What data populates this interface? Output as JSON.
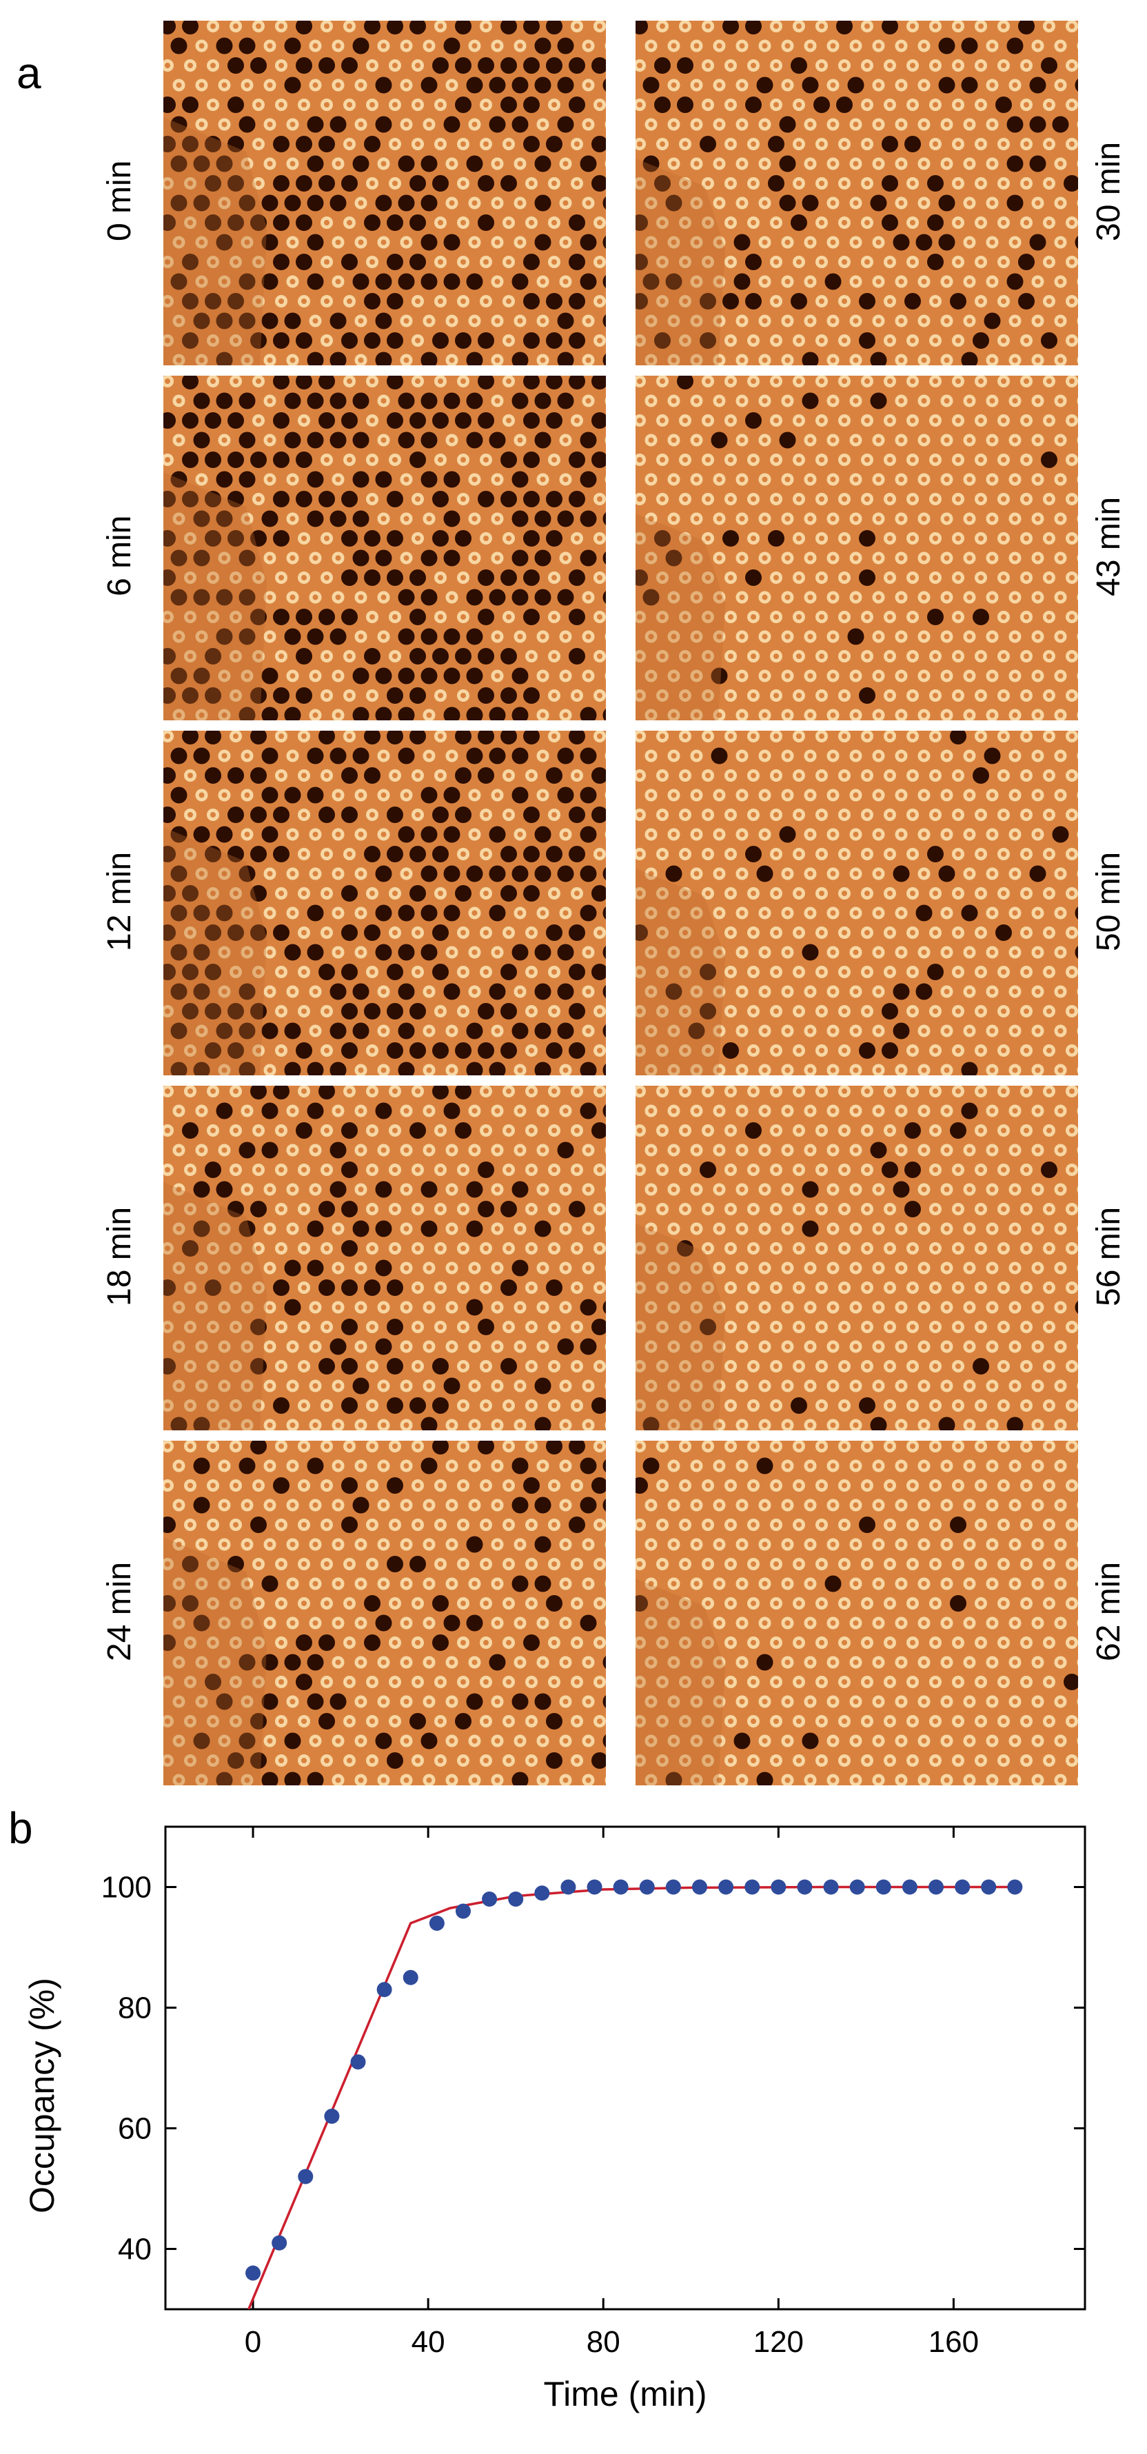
{
  "panel_labels": {
    "a": "a",
    "b": "b"
  },
  "stm_frames": [
    {
      "time": "0 min",
      "side": "left",
      "voids": "high"
    },
    {
      "time": "6 min",
      "side": "left",
      "voids": "high"
    },
    {
      "time": "12 min",
      "side": "left",
      "voids": "high"
    },
    {
      "time": "18 min",
      "side": "left",
      "voids": "medium"
    },
    {
      "time": "24 min",
      "side": "left",
      "voids": "medium"
    },
    {
      "time": "30 min",
      "side": "right",
      "voids": "medium"
    },
    {
      "time": "43 min",
      "side": "right",
      "voids": "low"
    },
    {
      "time": "50 min",
      "side": "right",
      "voids": "low"
    },
    {
      "time": "56 min",
      "side": "right",
      "voids": "low"
    },
    {
      "time": "62 min",
      "side": "right",
      "voids": "very-low"
    }
  ],
  "colors": {
    "stm_background": "#d9823f",
    "stm_bright": "#fbe6b6",
    "stm_dark": "#2b0d02",
    "points": "#2f4b9b",
    "fit_line": "#cc1f2e"
  },
  "chart_data": {
    "type": "scatter",
    "title": "",
    "xlabel": "Time (min)",
    "ylabel": "Occupancy (%)",
    "xlim": [
      -20,
      190
    ],
    "ylim": [
      30,
      110
    ],
    "xticks": [
      0,
      40,
      80,
      120,
      160
    ],
    "yticks": [
      40,
      60,
      80,
      100
    ],
    "grid": false,
    "series": [
      {
        "type": "scatter",
        "x": [
          0,
          6,
          12,
          18,
          24,
          30,
          36,
          42,
          48,
          54,
          60,
          66,
          72,
          78,
          84,
          90,
          96,
          102,
          108,
          114,
          120,
          126,
          132,
          138,
          144,
          150,
          156,
          162,
          168,
          174
        ],
        "y": [
          36,
          41,
          52,
          62,
          71,
          83,
          85,
          94,
          96,
          98,
          98,
          99,
          100,
          100,
          100,
          100,
          100,
          100,
          100,
          100,
          100,
          100,
          100,
          100,
          100,
          100,
          100,
          100,
          100,
          100
        ]
      },
      {
        "type": "line",
        "x": [
          -1,
          36,
          45,
          60,
          80,
          100,
          130,
          174
        ],
        "y": [
          30,
          94,
          96.5,
          98.5,
          99.6,
          99.9,
          100,
          100
        ]
      }
    ]
  }
}
